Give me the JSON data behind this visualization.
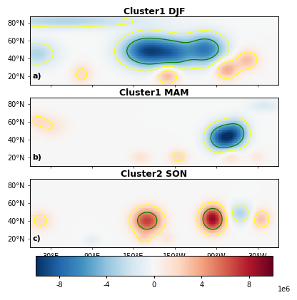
{
  "titles": [
    "Cluster1 DJF",
    "Cluster1 MAM",
    "Cluster2 SON"
  ],
  "panel_labels": [
    "a)",
    "b)",
    "c)"
  ],
  "lon_min": 0,
  "lon_max": 360,
  "lat_min": 10,
  "lat_max": 87,
  "lon_ticks": [
    30,
    90,
    150,
    210,
    270,
    330
  ],
  "lon_tick_labels": [
    "30°E",
    "90°E",
    "150°E",
    "150°W",
    "90°W",
    "30°W"
  ],
  "lat_ticks": [
    20,
    40,
    60,
    80
  ],
  "lat_tick_labels": [
    "20°N",
    "40°N",
    "60°N",
    "80°N"
  ],
  "vmin": -10000000,
  "vmax": 10000000,
  "colorbar_ticks": [
    -8,
    -4,
    0,
    4,
    8
  ],
  "colorbar_label": "1e6",
  "title_fontsize": 9,
  "label_fontsize": 8,
  "tick_fontsize": 7
}
